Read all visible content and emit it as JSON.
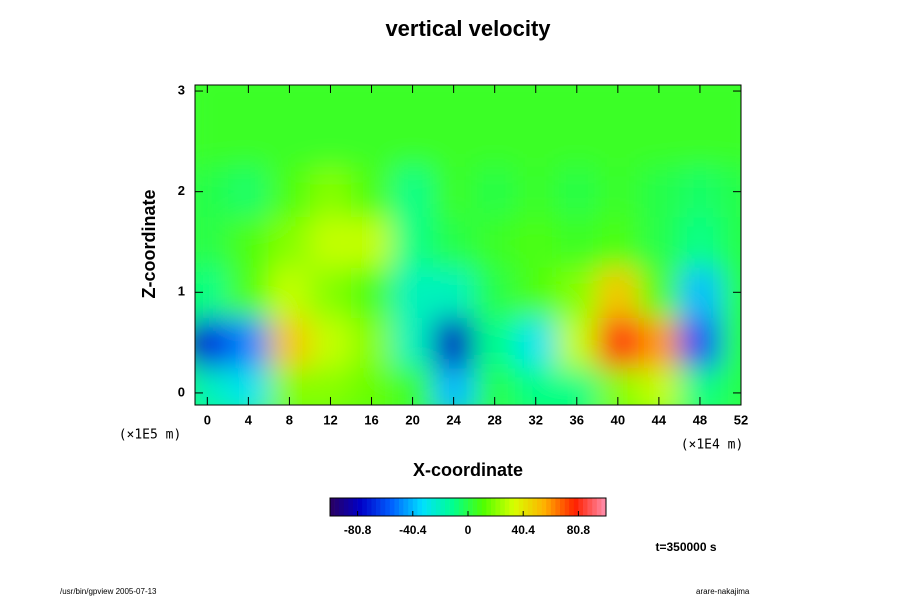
{
  "chart_data": {
    "type": "heatmap",
    "title": "vertical velocity",
    "xlabel": "X-coordinate",
    "ylabel": "Z-coordinate",
    "xunit": "(×1E4 m)",
    "yunit": "(×1E5 m)",
    "x": [
      0,
      4,
      8,
      12,
      16,
      20,
      24,
      28,
      32,
      36,
      40,
      44,
      48,
      52
    ],
    "y": [
      0,
      0.5,
      1,
      1.5,
      2,
      2.5,
      3
    ],
    "values": [
      [
        -20,
        -30,
        20,
        20,
        15,
        5,
        -40,
        0,
        -10,
        -10,
        20,
        30,
        -10,
        0
      ],
      [
        -70,
        -50,
        50,
        30,
        20,
        -20,
        -80,
        -10,
        -30,
        30,
        80,
        60,
        -60,
        0
      ],
      [
        -10,
        10,
        30,
        20,
        10,
        -20,
        -20,
        0,
        10,
        20,
        50,
        10,
        -40,
        0
      ],
      [
        0,
        10,
        20,
        30,
        30,
        -10,
        0,
        5,
        10,
        5,
        10,
        0,
        -10,
        0
      ],
      [
        0,
        -5,
        10,
        20,
        10,
        -10,
        5,
        0,
        5,
        0,
        5,
        0,
        -5,
        0
      ],
      [
        5,
        5,
        5,
        5,
        5,
        5,
        5,
        5,
        5,
        5,
        5,
        5,
        5,
        5
      ],
      [
        5,
        5,
        5,
        5,
        5,
        5,
        5,
        5,
        5,
        5,
        5,
        5,
        5,
        5
      ]
    ],
    "xlim": [
      -1.2,
      52
    ],
    "ylim": [
      -0.12,
      3.06
    ],
    "xticks": [
      0,
      4,
      8,
      12,
      16,
      20,
      24,
      28,
      32,
      36,
      40,
      44,
      48,
      52
    ],
    "yticks": [
      0,
      1,
      2,
      3
    ],
    "clim": [
      -101,
      101
    ],
    "cticks": [
      -80.8,
      -40.4,
      0,
      40.4,
      80.8
    ],
    "colormap": [
      "#2a0060",
      "#0000c8",
      "#0060ff",
      "#00e0ff",
      "#00ff90",
      "#50ff00",
      "#d8ff00",
      "#ffb000",
      "#ff2000",
      "#ff90b0"
    ],
    "time_label": "t=350000 s",
    "footer_left": "/usr/bin/gpview 2005-07-13",
    "footer_right": "arare-nakajima"
  }
}
